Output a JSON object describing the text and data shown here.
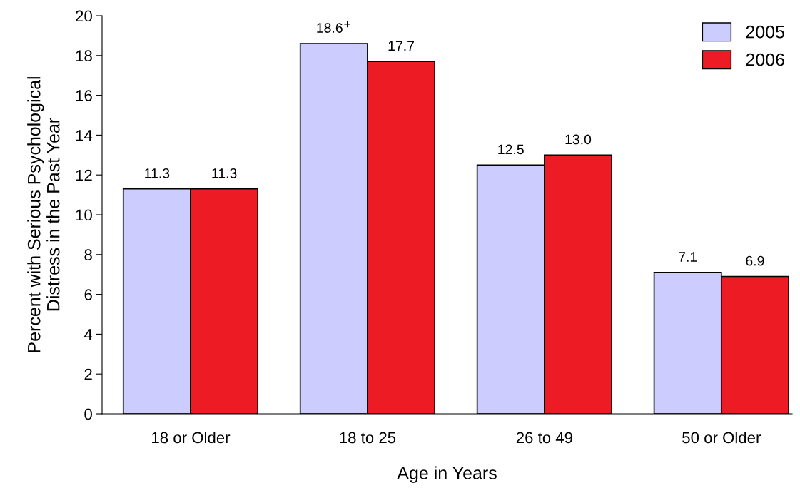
{
  "chart_data": {
    "type": "bar",
    "xlabel": "Age in Years",
    "ylabel": "Percent with Serious Psychological\nDistress in the Past Year",
    "categories": [
      "18 or Older",
      "18 to 25",
      "26 to 49",
      "50 or Older"
    ],
    "series": [
      {
        "name": "2005",
        "color": "#ccccff",
        "values": [
          11.3,
          18.6,
          12.5,
          7.1
        ],
        "value_labels": [
          "11.3",
          "18.6$^{+}$",
          "12.5",
          "7.1"
        ]
      },
      {
        "name": "2006",
        "color": "#ed1c24",
        "values": [
          11.3,
          17.7,
          13.0,
          6.9
        ],
        "value_labels": [
          "11.3",
          "17.7",
          "13.0",
          "6.9"
        ]
      }
    ],
    "ylim": [
      0,
      20
    ],
    "yticks": [
      0,
      2,
      4,
      6,
      8,
      10,
      12,
      14,
      16,
      18,
      20
    ],
    "grid": false,
    "legend": "top right"
  }
}
